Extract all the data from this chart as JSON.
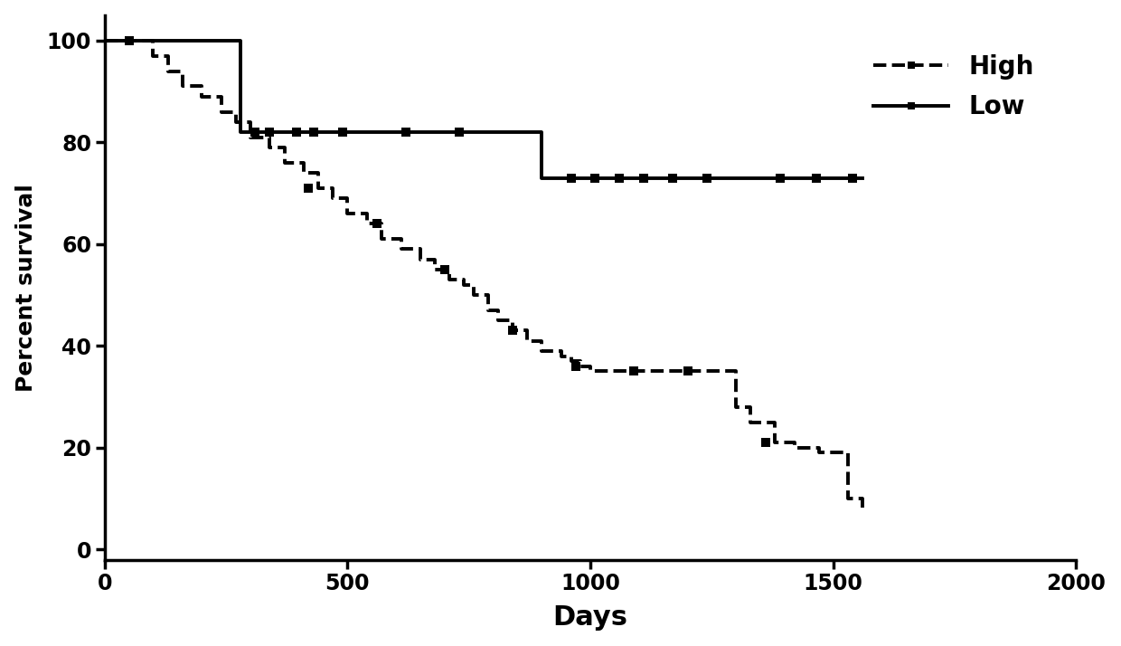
{
  "title": "",
  "xlabel": "Days",
  "ylabel": "Percent survival",
  "xlim": [
    0,
    2000
  ],
  "ylim": [
    -2,
    105
  ],
  "xticks": [
    0,
    500,
    1000,
    1500,
    2000
  ],
  "yticks": [
    0,
    20,
    40,
    60,
    80,
    100
  ],
  "background_color": "#ffffff",
  "line_color": "#000000",
  "low_times": [
    0,
    280,
    900,
    1560
  ],
  "low_survival": [
    100,
    82,
    73,
    73
  ],
  "low_censored_times": [
    50,
    310,
    340,
    395,
    430,
    490,
    620,
    730,
    960,
    1010,
    1060,
    1110,
    1170,
    1240,
    1390,
    1465,
    1540
  ],
  "low_censored_surv": [
    100,
    82,
    82,
    82,
    82,
    82,
    82,
    82,
    73,
    73,
    73,
    73,
    73,
    73,
    73,
    73,
    73
  ],
  "high_times": [
    0,
    100,
    130,
    160,
    200,
    240,
    270,
    300,
    340,
    370,
    410,
    440,
    470,
    500,
    540,
    570,
    610,
    650,
    680,
    710,
    740,
    760,
    790,
    810,
    840,
    870,
    900,
    940,
    960,
    980,
    1000,
    1270,
    1300,
    1330,
    1380,
    1420,
    1470,
    1530,
    1560
  ],
  "high_survival": [
    100,
    97,
    94,
    91,
    89,
    86,
    84,
    81,
    79,
    76,
    74,
    71,
    69,
    66,
    64,
    61,
    59,
    57,
    55,
    53,
    52,
    50,
    47,
    45,
    43,
    41,
    39,
    38,
    37,
    36,
    35,
    35,
    28,
    25,
    21,
    20,
    19,
    10,
    8
  ],
  "high_censored_times": [
    420,
    560,
    700,
    840,
    970,
    1090,
    1200,
    1360
  ],
  "high_censored_surv": [
    71,
    64,
    55,
    43,
    36,
    35,
    35,
    21
  ],
  "legend_high_label": "High",
  "legend_low_label": "Low",
  "fontsize_labels": 18,
  "fontsize_ticks": 16,
  "fontsize_legend": 20,
  "linewidth": 2.8,
  "marker_size": 7
}
